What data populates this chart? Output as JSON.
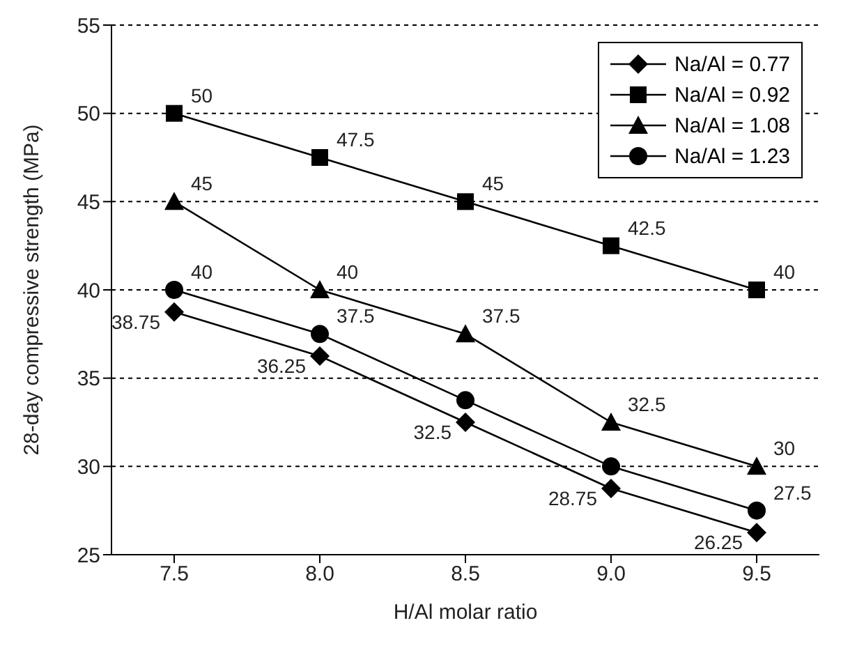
{
  "chart_data": {
    "type": "line",
    "xlabel": "H/Al molar ratio",
    "ylabel": "28-day compressive strength (MPa)",
    "categories": [
      "7.5",
      "8.0",
      "8.5",
      "9.0",
      "9.5"
    ],
    "ylim": [
      25,
      55
    ],
    "yticks": [
      25,
      30,
      35,
      40,
      45,
      50,
      55
    ],
    "grid": "y",
    "legend": "top right",
    "line_style": "solid",
    "series": [
      {
        "name": "Na/Al = 0.77",
        "color": "#000000",
        "marker": "diamond",
        "values": [
          38.75,
          36.25,
          32.5,
          28.75,
          26.25
        ],
        "value_labels": [
          "38.75",
          "36.25",
          "32.5",
          "28.75",
          "26.25"
        ]
      },
      {
        "name": "Na/Al = 0.92",
        "color": "#000000",
        "marker": "square",
        "values": [
          50,
          47.5,
          45,
          42.5,
          40
        ],
        "value_labels": [
          "50",
          "47.5",
          "45",
          "42.5",
          "40"
        ]
      },
      {
        "name": "Na/Al = 1.08",
        "color": "#000000",
        "marker": "triangle",
        "values": [
          45,
          40,
          37.5,
          32.5,
          30
        ],
        "value_labels": [
          "45",
          "40",
          "37.5",
          "32.5",
          "30"
        ]
      },
      {
        "name": "Na/Al = 1.23",
        "color": "#000000",
        "marker": "circle",
        "values": [
          40,
          37.5,
          33.75,
          30,
          27.5
        ],
        "value_labels": [
          "40",
          "37.5",
          null,
          null,
          "27.5"
        ]
      }
    ]
  }
}
